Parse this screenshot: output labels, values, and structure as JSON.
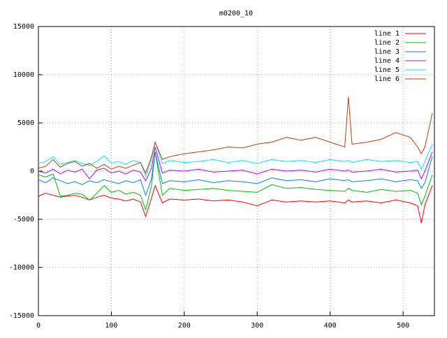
{
  "chart_data": {
    "type": "line",
    "title": "m0200_10",
    "x": [
      0,
      10,
      20,
      30,
      40,
      50,
      60,
      70,
      80,
      90,
      100,
      110,
      120,
      130,
      140,
      147,
      155,
      160,
      170,
      180,
      200,
      220,
      240,
      260,
      280,
      300,
      320,
      340,
      360,
      380,
      400,
      420,
      425,
      430,
      450,
      470,
      490,
      510,
      520,
      525,
      530,
      540
    ],
    "series": [
      {
        "name": "line 1",
        "color": "#ff0000",
        "values": [
          -2600,
          -2300,
          -2500,
          -2700,
          -2600,
          -2500,
          -2700,
          -3000,
          -2700,
          -2500,
          -2800,
          -2900,
          -3100,
          -2900,
          -3200,
          -4700,
          -2800,
          -1500,
          -3300,
          -2900,
          -3000,
          -2900,
          -3100,
          -3000,
          -3200,
          -3600,
          -3000,
          -3200,
          -3100,
          -3200,
          -3100,
          -3300,
          -3000,
          -3200,
          -3100,
          -3300,
          -3000,
          -3300,
          -3600,
          -5400,
          -3500,
          -1500
        ]
      },
      {
        "name": "line 2",
        "color": "#00c000",
        "values": [
          -400,
          -600,
          -300,
          -2600,
          -2500,
          -2300,
          -2400,
          -3000,
          -2300,
          -1500,
          -2200,
          -2000,
          -2400,
          -2200,
          -2500,
          -4000,
          -1500,
          2000,
          -2500,
          -1800,
          -2000,
          -1900,
          -1800,
          -2000,
          -2100,
          -2200,
          -1400,
          -1800,
          -1700,
          -1900,
          -2000,
          -2100,
          -1800,
          -2000,
          -2200,
          -1900,
          -2100,
          -2000,
          -2300,
          -3500,
          -2600,
          -400
        ]
      },
      {
        "name": "line 3",
        "color": "#0080ff",
        "values": [
          -900,
          -1200,
          -700,
          -1000,
          -1300,
          -1100,
          -1400,
          -1000,
          -1200,
          -900,
          -1100,
          -1300,
          -1000,
          -1200,
          -900,
          -2500,
          -800,
          2000,
          -1300,
          -1000,
          -1100,
          -900,
          -1200,
          -1000,
          -1100,
          -1300,
          -700,
          -1000,
          -900,
          -1100,
          -800,
          -1000,
          -900,
          -1100,
          -1000,
          -800,
          -1100,
          -900,
          -1000,
          -1800,
          -1200,
          1500
        ]
      },
      {
        "name": "line 4",
        "color": "#c000ff",
        "values": [
          0,
          -200,
          200,
          -300,
          100,
          -100,
          200,
          -800,
          100,
          300,
          -200,
          0,
          -300,
          100,
          -100,
          -1000,
          300,
          2500,
          -200,
          100,
          0,
          200,
          -100,
          0,
          100,
          -300,
          200,
          0,
          100,
          -100,
          200,
          0,
          100,
          -100,
          0,
          200,
          -100,
          0,
          100,
          -800,
          0,
          2000
        ]
      },
      {
        "name": "line 5",
        "color": "#00eeee",
        "values": [
          800,
          1000,
          1500,
          700,
          900,
          1100,
          800,
          600,
          1000,
          1600,
          800,
          1000,
          700,
          1100,
          900,
          -500,
          1200,
          3000,
          800,
          1100,
          900,
          1000,
          1200,
          900,
          1100,
          800,
          1200,
          1000,
          1100,
          900,
          1200,
          1000,
          1100,
          900,
          1200,
          1000,
          1100,
          900,
          1000,
          200,
          1000,
          2800
        ]
      },
      {
        "name": "line 6",
        "color": "#c04000",
        "values": [
          300,
          500,
          1200,
          400,
          800,
          1000,
          500,
          800,
          300,
          700,
          200,
          500,
          300,
          600,
          900,
          -200,
          1500,
          3000,
          1200,
          1500,
          1800,
          2000,
          2200,
          2500,
          2400,
          2800,
          3000,
          3500,
          3200,
          3500,
          3000,
          2500,
          7700,
          2800,
          3000,
          3300,
          4000,
          3500,
          2500,
          1800,
          2500,
          6000
        ]
      }
    ],
    "xlim": [
      0,
      543
    ],
    "ylim": [
      -15000,
      15000
    ],
    "xticks": [
      0,
      100,
      200,
      300,
      400,
      500
    ],
    "yticks": [
      -15000,
      -10000,
      -5000,
      0,
      5000,
      10000,
      15000
    ],
    "grid": true,
    "legend": "top-right"
  }
}
